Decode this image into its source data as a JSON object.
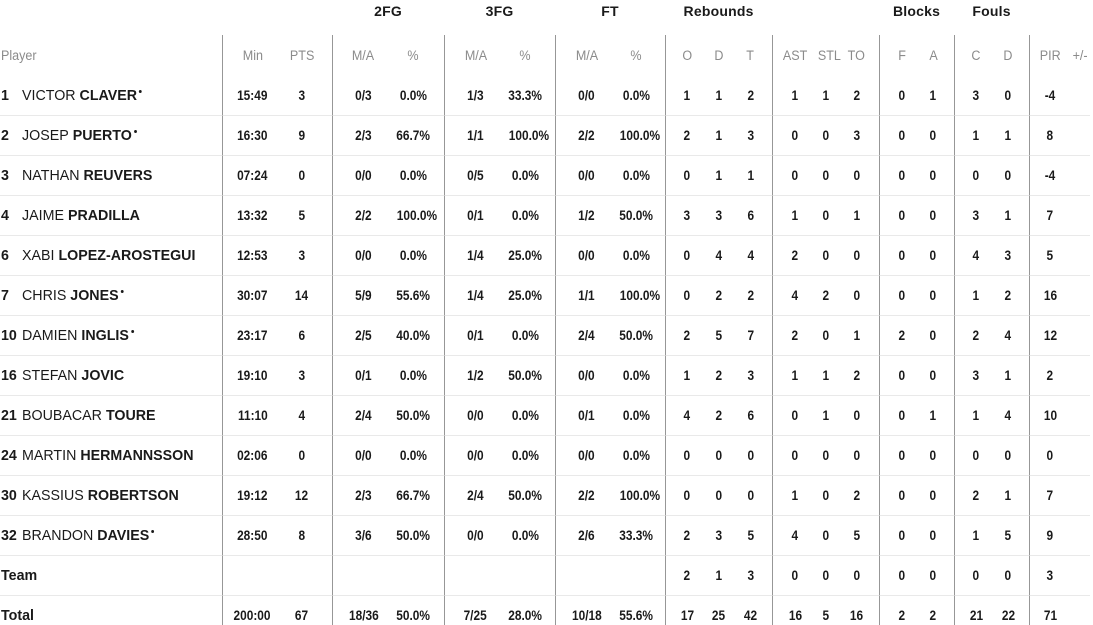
{
  "colors": {
    "background": "#ffffff",
    "text": "#1a1a1a",
    "muted_header": "#8b8b8b",
    "divider": "#979797",
    "row_separator": "#e9e9e9"
  },
  "table": {
    "group_headers": [
      {
        "label": "",
        "span": 3
      },
      {
        "label": "2FG",
        "span": 2
      },
      {
        "label": "3FG",
        "span": 2
      },
      {
        "label": "FT",
        "span": 2
      },
      {
        "label": "Rebounds",
        "span": 3
      },
      {
        "label": "",
        "span": 3
      },
      {
        "label": "Blocks",
        "span": 2
      },
      {
        "label": "Fouls",
        "span": 2
      },
      {
        "label": "",
        "span": 2
      }
    ],
    "column_headers": [
      "Player",
      "Min",
      "PTS",
      "M/A",
      "%",
      "M/A",
      "%",
      "M/A",
      "%",
      "O",
      "D",
      "T",
      "AST",
      "STL",
      "TO",
      "F",
      "A",
      "C",
      "D",
      "PIR",
      "+/-"
    ],
    "rows": [
      {
        "type": "player",
        "number": "1",
        "first": "VICTOR",
        "last": "CLAVER",
        "starter": true,
        "stats": [
          "15:49",
          "3",
          "0/3",
          "0.0%",
          "1/3",
          "33.3%",
          "0/0",
          "0.0%",
          "1",
          "1",
          "2",
          "1",
          "1",
          "2",
          "0",
          "1",
          "3",
          "0",
          "-4",
          ""
        ]
      },
      {
        "type": "player",
        "number": "2",
        "first": "JOSEP",
        "last": "PUERTO",
        "starter": true,
        "stats": [
          "16:30",
          "9",
          "2/3",
          "66.7%",
          "1/1",
          "100.0%",
          "2/2",
          "100.0%",
          "2",
          "1",
          "3",
          "0",
          "0",
          "3",
          "0",
          "0",
          "1",
          "1",
          "8",
          ""
        ]
      },
      {
        "type": "player",
        "number": "3",
        "first": "NATHAN",
        "last": "REUVERS",
        "starter": false,
        "stats": [
          "07:24",
          "0",
          "0/0",
          "0.0%",
          "0/5",
          "0.0%",
          "0/0",
          "0.0%",
          "0",
          "1",
          "1",
          "0",
          "0",
          "0",
          "0",
          "0",
          "0",
          "0",
          "-4",
          ""
        ]
      },
      {
        "type": "player",
        "number": "4",
        "first": "JAIME",
        "last": "PRADILLA",
        "starter": false,
        "stats": [
          "13:32",
          "5",
          "2/2",
          "100.0%",
          "0/1",
          "0.0%",
          "1/2",
          "50.0%",
          "3",
          "3",
          "6",
          "1",
          "0",
          "1",
          "0",
          "0",
          "3",
          "1",
          "7",
          ""
        ]
      },
      {
        "type": "player",
        "number": "6",
        "first": "XABI",
        "last": "LOPEZ-AROSTEGUI",
        "starter": false,
        "stats": [
          "12:53",
          "3",
          "0/0",
          "0.0%",
          "1/4",
          "25.0%",
          "0/0",
          "0.0%",
          "0",
          "4",
          "4",
          "2",
          "0",
          "0",
          "0",
          "0",
          "4",
          "3",
          "5",
          ""
        ]
      },
      {
        "type": "player",
        "number": "7",
        "first": "CHRIS",
        "last": "JONES",
        "starter": true,
        "stats": [
          "30:07",
          "14",
          "5/9",
          "55.6%",
          "1/4",
          "25.0%",
          "1/1",
          "100.0%",
          "0",
          "2",
          "2",
          "4",
          "2",
          "0",
          "0",
          "0",
          "1",
          "2",
          "16",
          ""
        ]
      },
      {
        "type": "player",
        "number": "10",
        "first": "DAMIEN",
        "last": "INGLIS",
        "starter": true,
        "stats": [
          "23:17",
          "6",
          "2/5",
          "40.0%",
          "0/1",
          "0.0%",
          "2/4",
          "50.0%",
          "2",
          "5",
          "7",
          "2",
          "0",
          "1",
          "2",
          "0",
          "2",
          "4",
          "12",
          ""
        ]
      },
      {
        "type": "player",
        "number": "16",
        "first": "STEFAN",
        "last": "JOVIC",
        "starter": false,
        "stats": [
          "19:10",
          "3",
          "0/1",
          "0.0%",
          "1/2",
          "50.0%",
          "0/0",
          "0.0%",
          "1",
          "2",
          "3",
          "1",
          "1",
          "2",
          "0",
          "0",
          "3",
          "1",
          "2",
          ""
        ]
      },
      {
        "type": "player",
        "number": "21",
        "first": "BOUBACAR",
        "last": "TOURE",
        "starter": false,
        "stats": [
          "11:10",
          "4",
          "2/4",
          "50.0%",
          "0/0",
          "0.0%",
          "0/1",
          "0.0%",
          "4",
          "2",
          "6",
          "0",
          "1",
          "0",
          "0",
          "1",
          "1",
          "4",
          "10",
          ""
        ]
      },
      {
        "type": "player",
        "number": "24",
        "first": "MARTIN",
        "last": "HERMANNSSON",
        "starter": false,
        "stats": [
          "02:06",
          "0",
          "0/0",
          "0.0%",
          "0/0",
          "0.0%",
          "0/0",
          "0.0%",
          "0",
          "0",
          "0",
          "0",
          "0",
          "0",
          "0",
          "0",
          "0",
          "0",
          "0",
          ""
        ]
      },
      {
        "type": "player",
        "number": "30",
        "first": "KASSIUS",
        "last": "ROBERTSON",
        "starter": false,
        "stats": [
          "19:12",
          "12",
          "2/3",
          "66.7%",
          "2/4",
          "50.0%",
          "2/2",
          "100.0%",
          "0",
          "0",
          "0",
          "1",
          "0",
          "2",
          "0",
          "0",
          "2",
          "1",
          "7",
          ""
        ]
      },
      {
        "type": "player",
        "number": "32",
        "first": "BRANDON",
        "last": "DAVIES",
        "starter": true,
        "stats": [
          "28:50",
          "8",
          "3/6",
          "50.0%",
          "0/0",
          "0.0%",
          "2/6",
          "33.3%",
          "2",
          "3",
          "5",
          "4",
          "0",
          "5",
          "0",
          "0",
          "1",
          "5",
          "9",
          ""
        ]
      },
      {
        "type": "team",
        "label": "Team",
        "stats": [
          "",
          "",
          "",
          "",
          "",
          "",
          "",
          "",
          "2",
          "1",
          "3",
          "0",
          "0",
          "0",
          "0",
          "0",
          "0",
          "0",
          "3",
          ""
        ]
      },
      {
        "type": "total",
        "label": "Total",
        "stats": [
          "200:00",
          "67",
          "18/36",
          "50.0%",
          "7/25",
          "28.0%",
          "10/18",
          "55.6%",
          "17",
          "25",
          "42",
          "16",
          "5",
          "16",
          "2",
          "2",
          "21",
          "22",
          "71",
          ""
        ]
      }
    ]
  }
}
